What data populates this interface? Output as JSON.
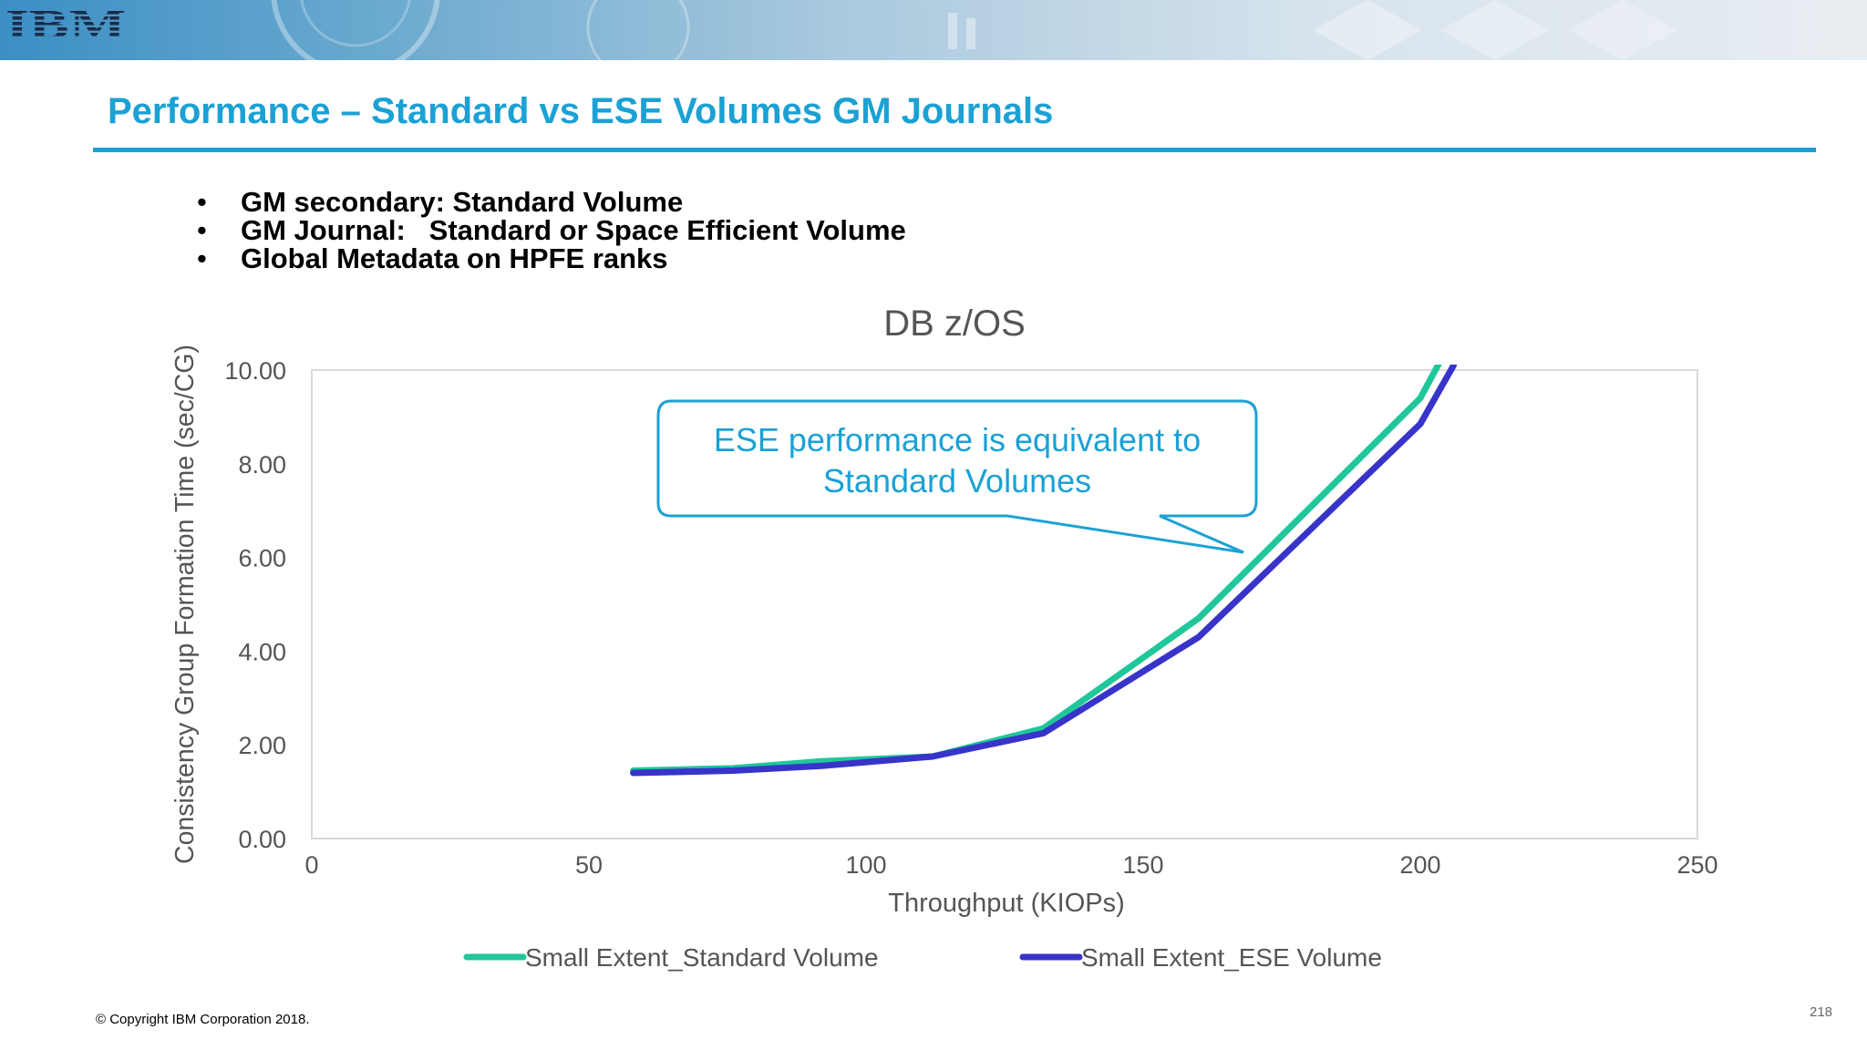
{
  "slide": {
    "title": "Performance – Standard vs ESE Volumes GM Journals",
    "bullets": [
      "GM secondary: Standard Volume",
      "GM Journal:   Standard or Space Efficient Volume",
      "Global Metadata on HPFE ranks"
    ],
    "copyright": "© Copyright IBM Corporation 2018.",
    "page_number": "218",
    "logo": "IBM",
    "colors": {
      "accent": "#1ba1d4",
      "standard_series": "#1fc79a",
      "ese_series": "#3834c9"
    }
  },
  "chart_data": {
    "type": "line",
    "title": "DB z/OS",
    "xlabel": "Throughput (KIOPs)",
    "ylabel": "Consistency Group Formation Time (sec/CG)",
    "xlim": [
      0,
      250
    ],
    "ylim": [
      0,
      10
    ],
    "x_ticks": [
      "0",
      "50",
      "100",
      "150",
      "200",
      "250"
    ],
    "y_ticks": [
      "0.00",
      "2.00",
      "4.00",
      "6.00",
      "8.00",
      "10.00"
    ],
    "grid": false,
    "legend": "bottom",
    "annotation": {
      "line1": "ESE performance is equivalent to",
      "line2": "Standard Volumes"
    },
    "series": [
      {
        "name": "Small Extent_Standard Volume",
        "color": "#1fc79a",
        "x": [
          58,
          76,
          92,
          112,
          132,
          160,
          200,
          205
        ],
        "y": [
          1.45,
          1.5,
          1.65,
          1.75,
          2.35,
          4.7,
          9.4,
          10.5
        ]
      },
      {
        "name": "Small Extent_ESE Volume",
        "color": "#3834c9",
        "x": [
          58,
          76,
          92,
          112,
          132,
          160,
          200,
          206
        ],
        "y": [
          1.4,
          1.45,
          1.55,
          1.75,
          2.25,
          4.3,
          8.85,
          10.1
        ]
      }
    ]
  }
}
